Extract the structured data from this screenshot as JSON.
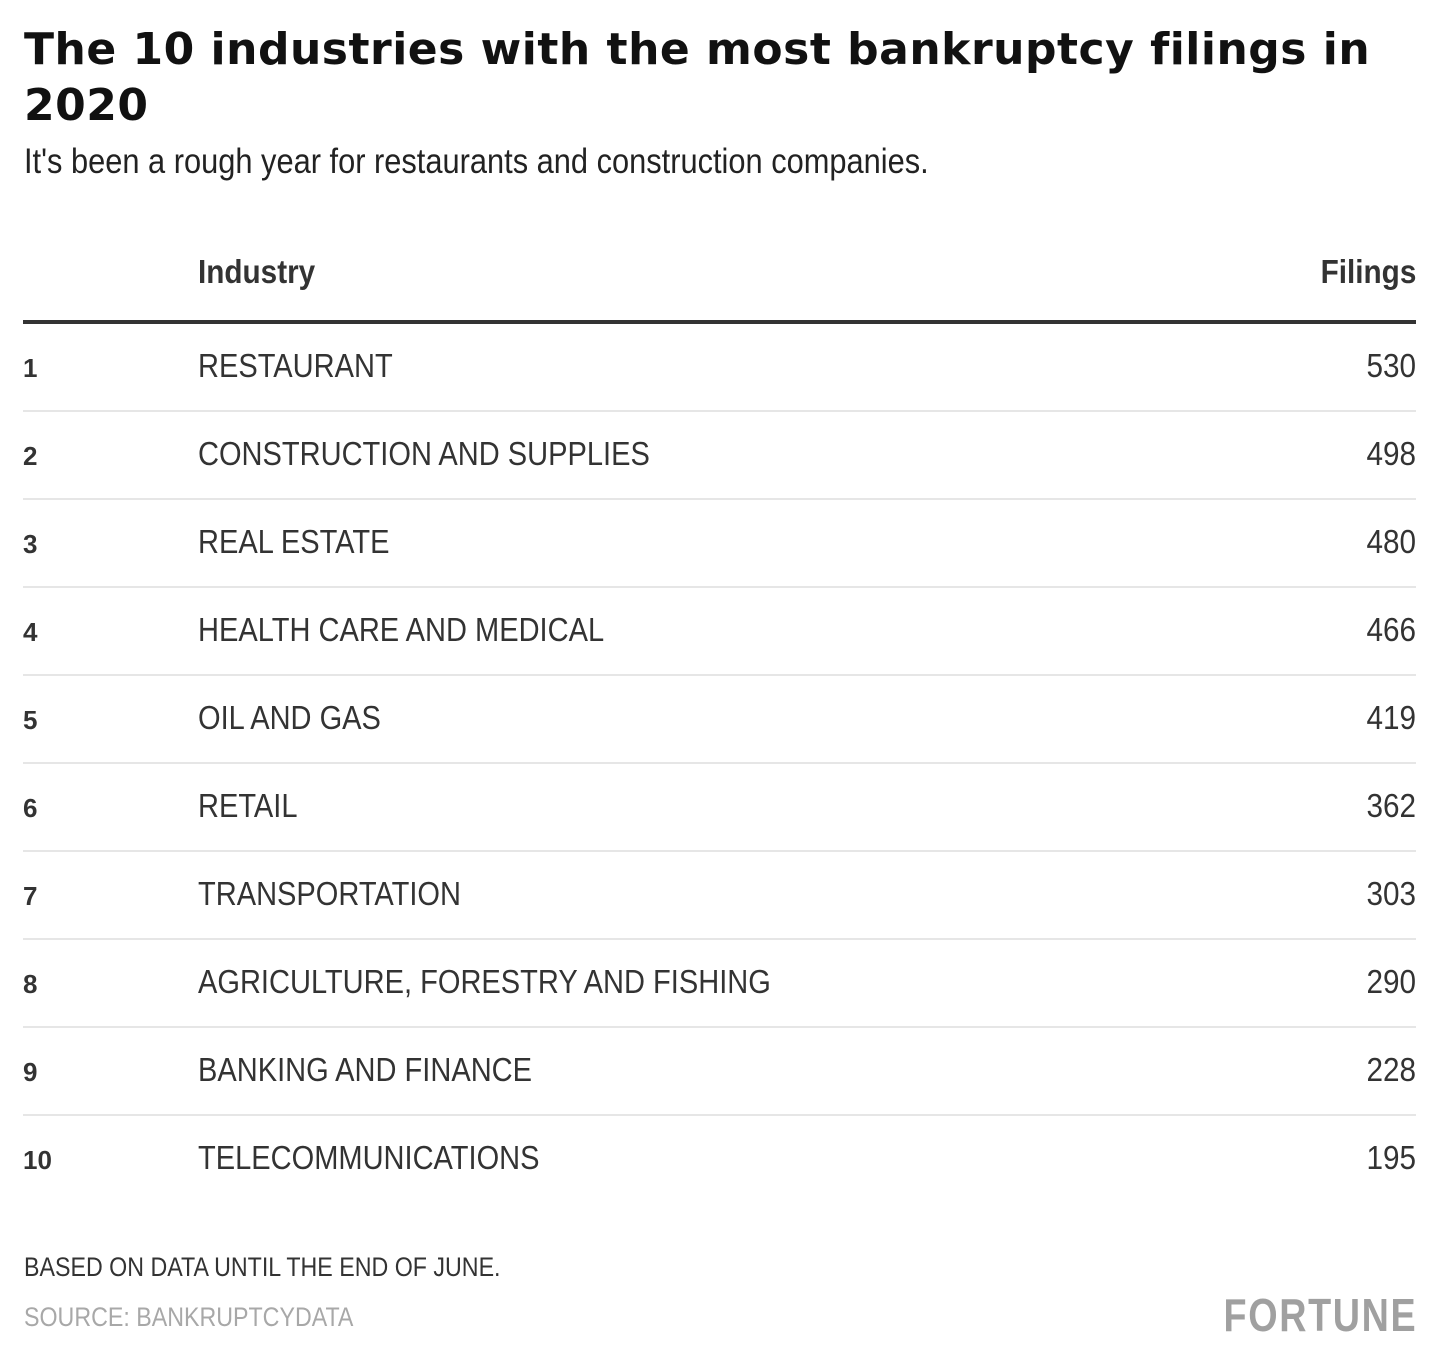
{
  "title": "The 10 industries with the most bankruptcy filings in 2020",
  "subtitle": "It's been a rough year for restaurants and construction companies.",
  "note": "BASED ON DATA UNTIL THE END OF JUNE.",
  "source": "SOURCE: BANKRUPTCYDATA",
  "logo_text": "FORTUNE",
  "colors": {
    "text": "#333333",
    "header_rule": "#333333",
    "row_divider": "#e6e6e6",
    "muted": "#a8a8a8"
  },
  "chart_data": {
    "type": "table",
    "title": "The 10 industries with the most bankruptcy filings in 2020",
    "subtitle": "It's been a rough year for restaurants and construction companies.",
    "columns": [
      "",
      "Industry",
      "Filings"
    ],
    "rows": [
      {
        "rank": "1",
        "industry": "RESTAURANT",
        "filings": "530"
      },
      {
        "rank": "2",
        "industry": "CONSTRUCTION AND SUPPLIES",
        "filings": "498"
      },
      {
        "rank": "3",
        "industry": "REAL ESTATE",
        "filings": "480"
      },
      {
        "rank": "4",
        "industry": "HEALTH CARE AND MEDICAL",
        "filings": "466"
      },
      {
        "rank": "5",
        "industry": "OIL AND GAS",
        "filings": "419"
      },
      {
        "rank": "6",
        "industry": "RETAIL",
        "filings": "362"
      },
      {
        "rank": "7",
        "industry": "TRANSPORTATION",
        "filings": "303"
      },
      {
        "rank": "8",
        "industry": "AGRICULTURE, FORESTRY AND FISHING",
        "filings": "290"
      },
      {
        "rank": "9",
        "industry": "BANKING AND FINANCE",
        "filings": "228"
      },
      {
        "rank": "10",
        "industry": "TELECOMMUNICATIONS",
        "filings": "195"
      }
    ]
  }
}
